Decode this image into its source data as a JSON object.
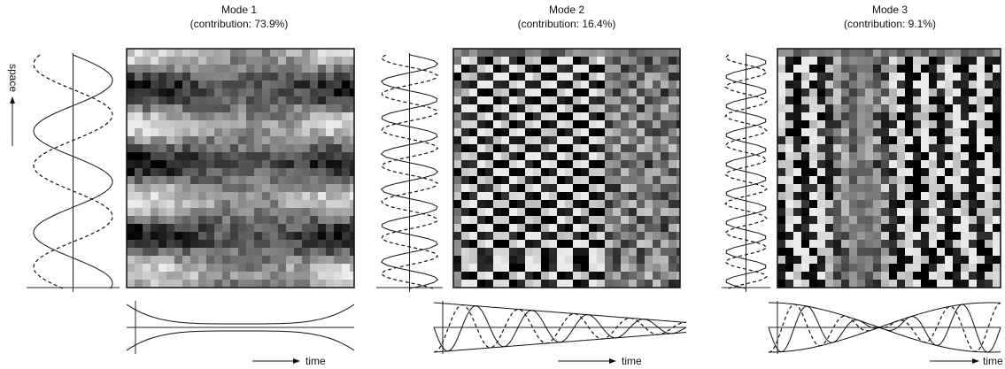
{
  "panels": [
    {
      "title": "Mode 1",
      "contribution": "(contribution: 73.9%)",
      "time_label": "time"
    },
    {
      "title": "Mode 2",
      "contribution": "(contribution: 16.4%)",
      "time_label": "time"
    },
    {
      "title": "Mode 3",
      "contribution": "(contribution: 9.1%)",
      "time_label": "time"
    }
  ],
  "space_label": "space"
}
